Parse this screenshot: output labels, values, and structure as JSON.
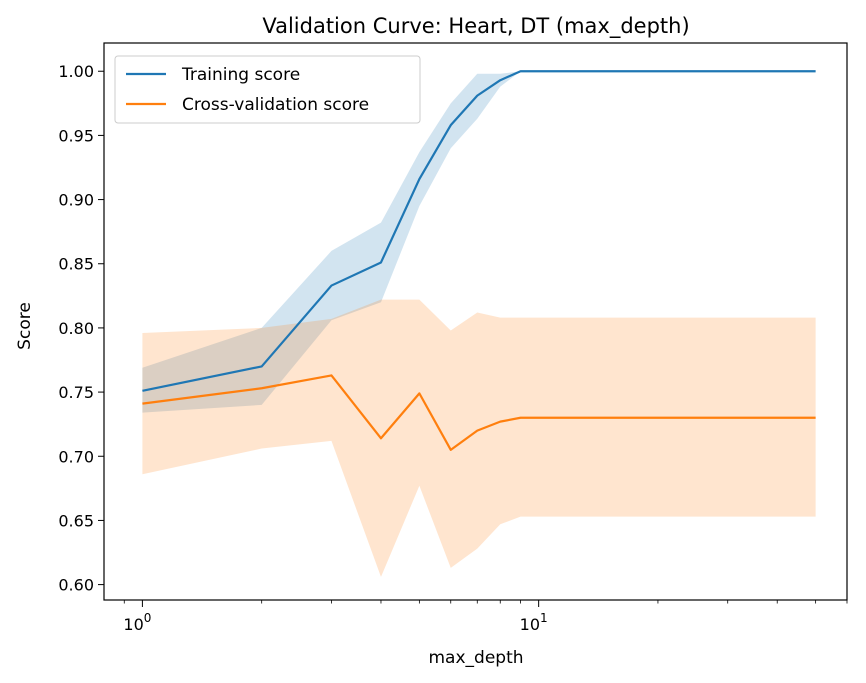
{
  "chart_data": {
    "type": "line",
    "title": "Validation Curve: Heart, DT (max_depth)",
    "xlabel": "max_depth",
    "ylabel": "Score",
    "xscale": "log",
    "xlim": [
      0.8,
      60
    ],
    "ylim": [
      0.588,
      1.022
    ],
    "legend_position": "top-left",
    "x": [
      1,
      2,
      3,
      4,
      5,
      6,
      7,
      8,
      9,
      50
    ],
    "x_ticks": [
      {
        "value": 1,
        "base": "10",
        "exp": "0"
      },
      {
        "value": 10,
        "base": "10",
        "exp": "1"
      }
    ],
    "y_ticks": [
      0.6,
      0.65,
      0.7,
      0.75,
      0.8,
      0.85,
      0.9,
      0.95,
      1.0
    ],
    "y_tick_labels": [
      "0.60",
      "0.65",
      "0.70",
      "0.75",
      "0.80",
      "0.85",
      "0.90",
      "0.95",
      "1.00"
    ],
    "series": [
      {
        "name": "Training score",
        "color": "#1f77b4",
        "values": [
          0.751,
          0.77,
          0.833,
          0.851,
          0.916,
          0.958,
          0.981,
          0.993,
          1.0,
          1.0
        ],
        "lower": [
          0.734,
          0.74,
          0.806,
          0.82,
          0.895,
          0.94,
          0.963,
          0.988,
          1.0,
          1.0
        ],
        "upper": [
          0.769,
          0.8,
          0.86,
          0.882,
          0.937,
          0.975,
          0.998,
          0.998,
          1.0,
          1.0
        ]
      },
      {
        "name": "Cross-validation score",
        "color": "#ff7f0e",
        "values": [
          0.741,
          0.753,
          0.763,
          0.714,
          0.749,
          0.705,
          0.72,
          0.727,
          0.73,
          0.73
        ],
        "lower": [
          0.686,
          0.706,
          0.712,
          0.606,
          0.677,
          0.613,
          0.628,
          0.647,
          0.653,
          0.653
        ],
        "upper": [
          0.796,
          0.8,
          0.807,
          0.822,
          0.822,
          0.798,
          0.812,
          0.808,
          0.808,
          0.808
        ]
      }
    ]
  }
}
